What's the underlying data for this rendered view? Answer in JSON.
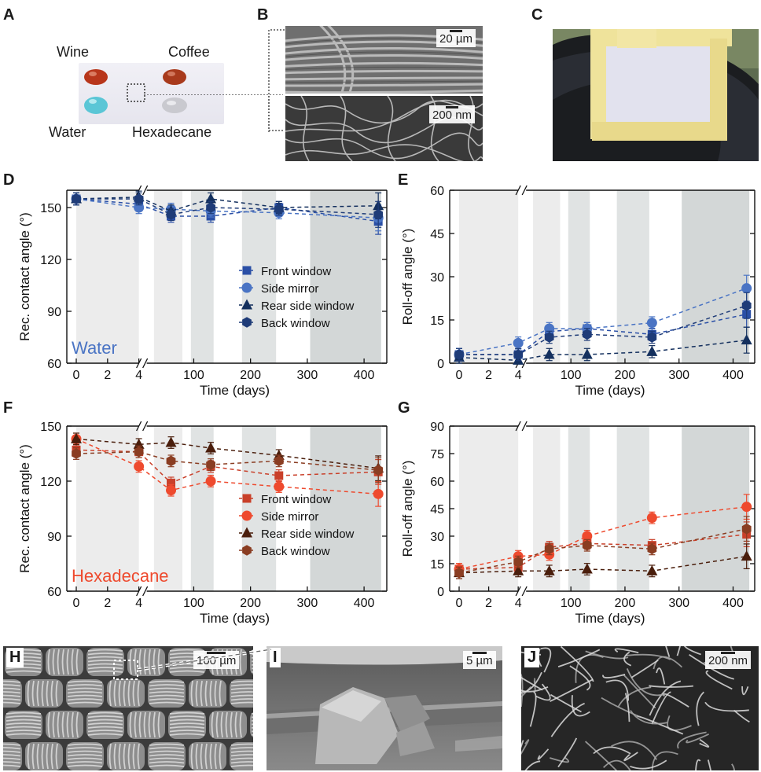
{
  "panels": {
    "A": "A",
    "B": "B",
    "C": "C",
    "D": "D",
    "E": "E",
    "F": "F",
    "G": "G",
    "H": "H",
    "I": "I",
    "J": "J"
  },
  "droplets": {
    "wine": "Wine",
    "coffee": "Coffee",
    "water": "Water",
    "hexadecane": "Hexadecane"
  },
  "scale_bars": {
    "b_top": "20 µm",
    "b_bottom": "200 nm",
    "h": "100 µm",
    "i": "5 µm",
    "j": "200 nm"
  },
  "colors": {
    "blue_square": "#2a4fa6",
    "blue_circle": "#4a74c4",
    "navy_triangle": "#14305e",
    "navy_hexagon": "#1f3c78",
    "red_square": "#c9402a",
    "red_circle": "#ee4a2e",
    "brown_triangle": "#4a1e0c",
    "brown_hexagon": "#8a3d22",
    "band_light": "#ececec",
    "band_mid": "#e0e3e3",
    "band_dark": "#d3d7d7"
  },
  "chart_data": [
    {
      "panel": "D",
      "type": "line",
      "xlabel": "Time (days)",
      "ylabel": "Rec. contact angle (°)",
      "ylim": [
        60,
        160
      ],
      "yticks": [
        60,
        90,
        120,
        150
      ],
      "xticks_left": [
        "0",
        "2",
        "4"
      ],
      "xticks_right": [
        "100",
        "200",
        "300",
        "400"
      ],
      "xaxis_break": true,
      "annotation": "Water",
      "legend_position": "lower-right",
      "series": [
        {
          "name": "Front window",
          "marker": "square",
          "x": [
            0,
            4,
            60,
            130,
            250,
            425
          ],
          "y": [
            155,
            152,
            145,
            145,
            150,
            142
          ]
        },
        {
          "name": "Side mirror",
          "marker": "circle",
          "x": [
            0,
            4,
            60,
            130,
            250,
            425
          ],
          "y": [
            155,
            150,
            149,
            148,
            147,
            144
          ]
        },
        {
          "name": "Rear side window",
          "marker": "triangle",
          "x": [
            0,
            4,
            60,
            130,
            250,
            425
          ],
          "y": [
            155,
            156,
            148,
            155,
            150,
            151
          ]
        },
        {
          "name": "Back window",
          "marker": "hexagon",
          "x": [
            0,
            4,
            60,
            130,
            250,
            425
          ],
          "y": [
            155,
            155,
            146,
            150,
            149,
            146
          ]
        }
      ]
    },
    {
      "panel": "E",
      "type": "line",
      "xlabel": "Time (days)",
      "ylabel": "Roll-off angle (°)",
      "ylim": [
        0,
        60
      ],
      "yticks": [
        0,
        15,
        30,
        45,
        60
      ],
      "xticks_left": [
        "0",
        "2",
        "4"
      ],
      "xticks_right": [
        "100",
        "200",
        "300",
        "400"
      ],
      "xaxis_break": true,
      "series": [
        {
          "name": "Front window",
          "marker": "square",
          "x": [
            0,
            4,
            60,
            130,
            250,
            425
          ],
          "y": [
            3,
            3,
            11,
            12,
            10,
            17
          ]
        },
        {
          "name": "Side mirror",
          "marker": "circle",
          "x": [
            0,
            4,
            60,
            130,
            250,
            425
          ],
          "y": [
            3,
            7,
            12,
            12,
            14,
            26
          ]
        },
        {
          "name": "Rear side window",
          "marker": "triangle",
          "x": [
            0,
            4,
            60,
            130,
            250,
            425
          ],
          "y": [
            2,
            1,
            3,
            3,
            4,
            8
          ]
        },
        {
          "name": "Back window",
          "marker": "hexagon",
          "x": [
            0,
            4,
            60,
            130,
            250,
            425
          ],
          "y": [
            3,
            3,
            9,
            10,
            9,
            20
          ]
        }
      ]
    },
    {
      "panel": "F",
      "type": "line",
      "xlabel": "Time (days)",
      "ylabel": "Rec. contact angle (°)",
      "ylim": [
        60,
        150
      ],
      "yticks": [
        60,
        90,
        120,
        150
      ],
      "xticks_left": [
        "0",
        "2",
        "4"
      ],
      "xticks_right": [
        "100",
        "200",
        "300",
        "400"
      ],
      "xaxis_break": true,
      "annotation": "Hexadecane",
      "legend_position": "lower-right",
      "series": [
        {
          "name": "Front window",
          "marker": "square",
          "x": [
            0,
            4,
            60,
            130,
            250,
            425
          ],
          "y": [
            137,
            136,
            119,
            128,
            123,
            125
          ]
        },
        {
          "name": "Side mirror",
          "marker": "circle",
          "x": [
            0,
            4,
            60,
            130,
            250,
            425
          ],
          "y": [
            143,
            128,
            115,
            120,
            117,
            113
          ]
        },
        {
          "name": "Rear side window",
          "marker": "triangle",
          "x": [
            0,
            4,
            60,
            130,
            250,
            425
          ],
          "y": [
            143,
            140,
            141,
            138,
            134,
            127
          ]
        },
        {
          "name": "Back window",
          "marker": "hexagon",
          "x": [
            0,
            4,
            60,
            130,
            250,
            425
          ],
          "y": [
            135,
            136,
            131,
            129,
            131,
            126
          ]
        }
      ]
    },
    {
      "panel": "G",
      "type": "line",
      "xlabel": "Time (days)",
      "ylabel": "Roll-off angle (°)",
      "ylim": [
        0,
        90
      ],
      "yticks": [
        0,
        15,
        30,
        45,
        60,
        75,
        90
      ],
      "xticks_left": [
        "0",
        "2",
        "4"
      ],
      "xticks_right": [
        "100",
        "200",
        "300",
        "400"
      ],
      "xaxis_break": true,
      "series": [
        {
          "name": "Front window",
          "marker": "square",
          "x": [
            0,
            4,
            60,
            130,
            250,
            425
          ],
          "y": [
            12,
            13,
            24,
            26,
            25,
            31
          ]
        },
        {
          "name": "Side mirror",
          "marker": "circle",
          "x": [
            0,
            4,
            60,
            130,
            250,
            425
          ],
          "y": [
            12,
            19,
            20,
            30,
            40,
            46
          ]
        },
        {
          "name": "Rear side window",
          "marker": "triangle",
          "x": [
            0,
            4,
            60,
            130,
            250,
            425
          ],
          "y": [
            10,
            11,
            11,
            12,
            11,
            19
          ]
        },
        {
          "name": "Back window",
          "marker": "hexagon",
          "x": [
            0,
            4,
            60,
            130,
            250,
            425
          ],
          "y": [
            10,
            16,
            23,
            25,
            23,
            34
          ]
        }
      ]
    }
  ]
}
